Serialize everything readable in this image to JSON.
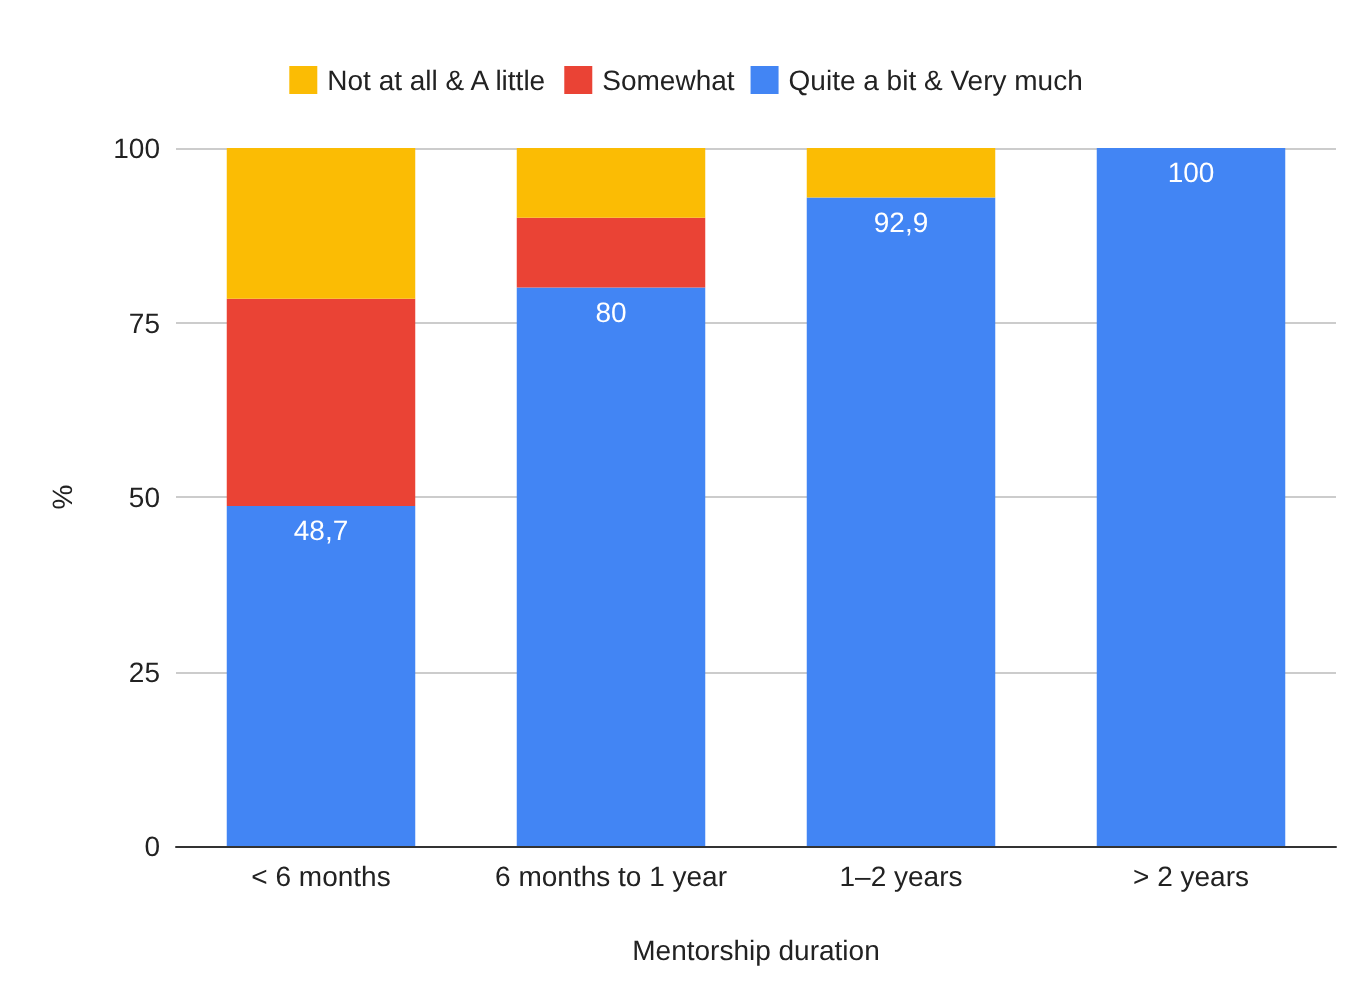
{
  "chart_data": {
    "type": "bar",
    "stacked": true,
    "xlabel": "Mentorship duration",
    "ylabel": "%",
    "categories": [
      "< 6 months",
      "6 months to 1 year",
      "1–2 years",
      "> 2 years"
    ],
    "series": [
      {
        "name": "Quite a bit & Very much",
        "color": "#4285f4",
        "values": [
          48.7,
          80,
          92.9,
          100
        ],
        "value_labels": [
          "48,7",
          "80",
          "92,9",
          "100"
        ]
      },
      {
        "name": "Somewhat",
        "color": "#ea4335",
        "values": [
          29.7,
          10,
          0,
          0
        ]
      },
      {
        "name": "Not at all & A little",
        "color": "#fbbc04",
        "values": [
          21.6,
          10,
          7.1,
          0
        ]
      }
    ],
    "ylim": [
      0,
      100
    ],
    "yticks": [
      0,
      25,
      50,
      75,
      100
    ],
    "grid": "y",
    "legend": "top"
  }
}
